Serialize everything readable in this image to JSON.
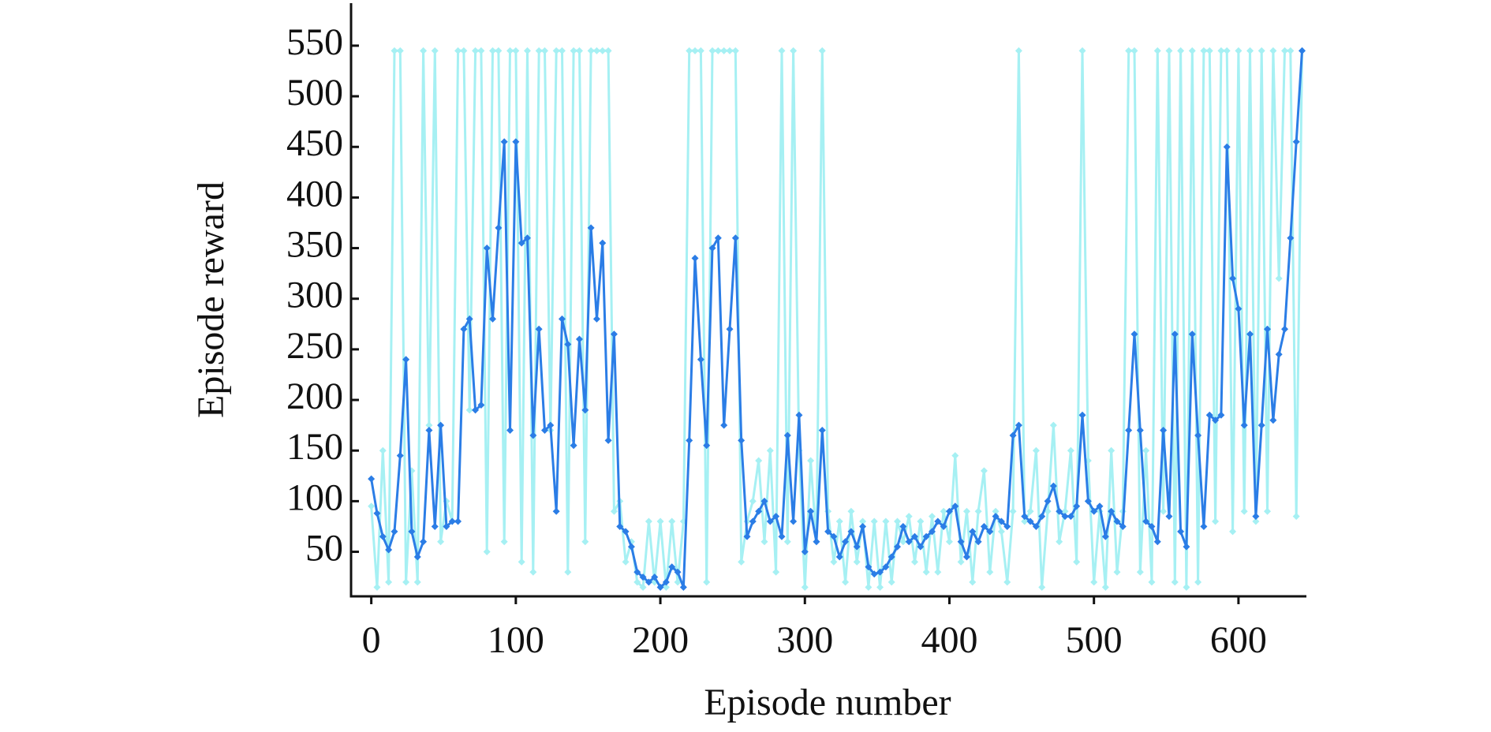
{
  "chart_data": {
    "type": "line",
    "xlabel": "Episode number",
    "ylabel": "Episode reward",
    "xlim": [
      -14,
      647
    ],
    "ylim": [
      6,
      592
    ],
    "xticks": [
      0,
      100,
      200,
      300,
      400,
      500,
      600
    ],
    "yticks": [
      50,
      100,
      150,
      200,
      250,
      300,
      350,
      400,
      450,
      500,
      550
    ],
    "grid": false,
    "x": [
      0,
      4,
      8,
      12,
      16,
      20,
      24,
      28,
      32,
      36,
      40,
      44,
      48,
      52,
      56,
      60,
      64,
      68,
      72,
      76,
      80,
      84,
      88,
      92,
      96,
      100,
      104,
      108,
      112,
      116,
      120,
      124,
      128,
      132,
      136,
      140,
      144,
      148,
      152,
      156,
      160,
      164,
      168,
      172,
      176,
      180,
      184,
      188,
      192,
      196,
      200,
      204,
      208,
      212,
      216,
      220,
      224,
      228,
      232,
      236,
      240,
      244,
      248,
      252,
      256,
      260,
      264,
      268,
      272,
      276,
      280,
      284,
      288,
      292,
      296,
      300,
      304,
      308,
      312,
      316,
      320,
      324,
      328,
      332,
      336,
      340,
      344,
      348,
      352,
      356,
      360,
      364,
      368,
      372,
      376,
      380,
      384,
      388,
      392,
      396,
      400,
      404,
      408,
      412,
      416,
      420,
      424,
      428,
      432,
      436,
      440,
      444,
      448,
      452,
      456,
      460,
      464,
      468,
      472,
      476,
      480,
      484,
      488,
      492,
      496,
      500,
      504,
      508,
      512,
      516,
      520,
      524,
      528,
      532,
      536,
      540,
      544,
      548,
      552,
      556,
      560,
      564,
      568,
      572,
      576,
      580,
      584,
      588,
      592,
      596,
      600,
      604,
      608,
      612,
      616,
      620,
      624,
      628,
      632,
      636,
      640,
      644
    ],
    "series": [
      {
        "color": "#a6f0f3",
        "values": [
          95,
          15,
          150,
          20,
          545,
          545,
          20,
          130,
          20,
          545,
          175,
          545,
          60,
          100,
          80,
          545,
          545,
          190,
          545,
          545,
          50,
          545,
          545,
          60,
          545,
          545,
          40,
          545,
          30,
          545,
          545,
          170,
          545,
          545,
          30,
          545,
          545,
          60,
          545,
          545,
          545,
          545,
          90,
          100,
          40,
          60,
          20,
          15,
          80,
          20,
          80,
          15,
          80,
          20,
          80,
          545,
          545,
          545,
          20,
          545,
          545,
          545,
          545,
          545,
          40,
          80,
          100,
          140,
          60,
          150,
          30,
          545,
          60,
          545,
          150,
          15,
          140,
          60,
          545,
          90,
          40,
          80,
          20,
          90,
          40,
          80,
          15,
          80,
          15,
          80,
          20,
          80,
          60,
          85,
          40,
          80,
          30,
          85,
          30,
          90,
          60,
          145,
          40,
          90,
          20,
          90,
          130,
          30,
          90,
          70,
          20,
          90,
          545,
          80,
          90,
          150,
          15,
          90,
          175,
          60,
          90,
          150,
          40,
          545,
          140,
          20,
          90,
          15,
          150,
          30,
          90,
          545,
          545,
          30,
          150,
          20,
          545,
          90,
          545,
          20,
          545,
          15,
          545,
          20,
          545,
          545,
          80,
          545,
          545,
          70,
          545,
          90,
          545,
          80,
          545,
          90,
          545,
          320,
          545,
          545,
          85,
          545
        ]
      },
      {
        "color": "#2b7de6",
        "values": [
          122,
          88,
          65,
          52,
          70,
          145,
          240,
          70,
          45,
          60,
          170,
          75,
          175,
          75,
          80,
          80,
          270,
          280,
          190,
          195,
          350,
          280,
          370,
          455,
          170,
          455,
          355,
          360,
          165,
          270,
          170,
          175,
          90,
          280,
          255,
          155,
          260,
          190,
          370,
          280,
          355,
          160,
          265,
          75,
          70,
          55,
          30,
          25,
          20,
          25,
          15,
          20,
          35,
          30,
          15,
          160,
          340,
          240,
          155,
          350,
          360,
          175,
          270,
          360,
          160,
          65,
          80,
          90,
          100,
          80,
          85,
          65,
          165,
          80,
          185,
          50,
          90,
          60,
          170,
          70,
          65,
          45,
          60,
          70,
          55,
          75,
          35,
          28,
          30,
          35,
          45,
          55,
          75,
          60,
          65,
          55,
          65,
          70,
          80,
          75,
          90,
          95,
          60,
          45,
          70,
          60,
          75,
          70,
          85,
          80,
          75,
          165,
          175,
          85,
          80,
          75,
          85,
          100,
          115,
          90,
          85,
          85,
          95,
          185,
          100,
          90,
          95,
          65,
          90,
          80,
          75,
          170,
          265,
          170,
          80,
          75,
          60,
          170,
          85,
          265,
          70,
          55,
          265,
          165,
          75,
          185,
          180,
          185,
          450,
          320,
          290,
          175,
          265,
          85,
          175,
          270,
          180,
          245,
          270,
          360,
          455,
          545
        ]
      }
    ]
  }
}
